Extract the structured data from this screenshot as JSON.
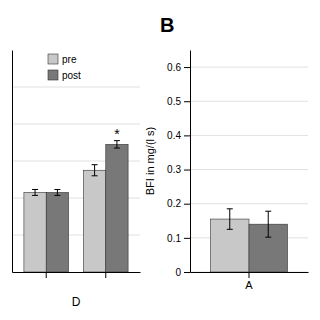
{
  "chart_data": [
    {
      "type": "bar",
      "x_label": "D",
      "categories": [
        null,
        null
      ],
      "series": [
        {
          "name": "pre",
          "color": "#c8c8c8",
          "values": [
            0.215,
            0.275
          ],
          "errors": [
            0.008,
            0.015
          ]
        },
        {
          "name": "post",
          "color": "#787878",
          "values": [
            0.215,
            0.345
          ],
          "errors": [
            0.008,
            0.01
          ]
        }
      ],
      "ylim": [
        0,
        0.6
      ],
      "yticks": [
        0.1,
        0.2,
        0.3,
        0.4,
        0.5
      ],
      "grid": true,
      "tick_labels": false,
      "legend": "upper left",
      "annotations": [
        {
          "text": "*",
          "series": "post",
          "index": 1
        }
      ]
    },
    {
      "type": "bar",
      "title": "B",
      "y_label": "BFI in mg/(l s)",
      "categories": [
        "A"
      ],
      "series": [
        {
          "color": "#c8c8c8",
          "values": [
            0.155
          ],
          "errors": [
            0.03
          ]
        },
        {
          "color": "#787878",
          "values": [
            0.14
          ],
          "errors": [
            0.038
          ]
        }
      ],
      "ylim": [
        0,
        0.65
      ],
      "yticks": [
        0,
        0.1,
        0.2,
        0.3,
        0.4,
        0.5,
        0.6
      ],
      "grid": true
    }
  ]
}
